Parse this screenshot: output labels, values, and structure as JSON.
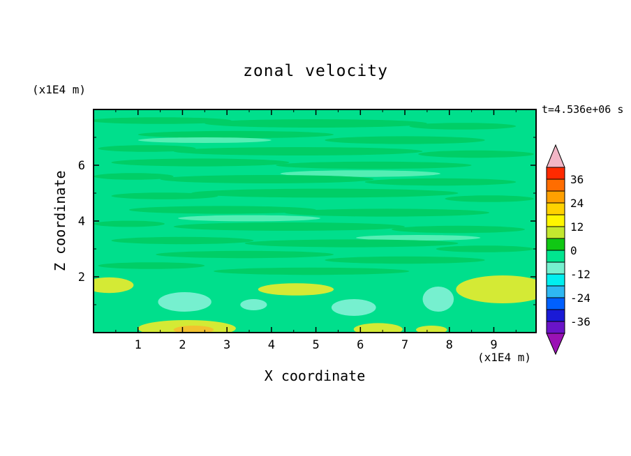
{
  "title": "zonal velocity",
  "time_label": "t=4.536e+06 s",
  "axes": {
    "x_label": "X coordinate",
    "x_unit": "(x1E4 m)",
    "y_label": "Z coordinate",
    "y_unit": "(x1E4 m)",
    "x_ticks": [
      1,
      2,
      3,
      4,
      5,
      6,
      7,
      8,
      9
    ],
    "x_minor_ticks": [
      0.5,
      1.5,
      2.5,
      3.5,
      4.5,
      5.5,
      6.5,
      7.5,
      8.5,
      9.5
    ],
    "y_ticks": [
      2,
      4,
      6
    ],
    "y_minor_ticks": [
      1,
      3,
      5,
      7
    ]
  },
  "chart_data": {
    "type": "heatmap",
    "subtype": "filled-contour",
    "title": "zonal velocity",
    "xlabel": "X coordinate (x1E4 m)",
    "ylabel": "Z coordinate (x1E4 m)",
    "time_annotation": "t=4.536e+06 s",
    "x_range": [
      0,
      9.95
    ],
    "z_range": [
      0,
      8
    ],
    "contour_interval": 6,
    "colorbar": {
      "levels": [
        -42,
        -36,
        -30,
        -24,
        -18,
        -12,
        -6,
        0,
        6,
        12,
        18,
        24,
        30,
        36,
        42
      ],
      "tick_labels": [
        "36",
        "24",
        "12",
        "0",
        "-12",
        "-24",
        "-36"
      ],
      "colors_top_to_bottom": [
        "#FF2A00",
        "#FF6D00",
        "#FFA000",
        "#FFD200",
        "#FFF600",
        "#C3E72F",
        "#10C814",
        "#00E58F",
        "#76F0CF",
        "#00EFEF",
        "#2EB8F2",
        "#0060FF",
        "#1A1AD6",
        "#6A14C8"
      ],
      "over_color": "#F2B6C6",
      "under_color": "#9A12B4"
    },
    "field": {
      "description": "Zonal velocity field, mostly near 0 m/s (green). Thin horizontal streaks of weakly positive velocity through the interior; patches of positive velocity (yellow-green, ~+6 to +18) near the lower boundary at left edge, center and lower-right; patches of negative velocity (pale cyan, ~-6 to -12) near z~1.",
      "palette": {
        "base": "#00DF8C",
        "g2": "#00CE66",
        "g3": "#55EEB4",
        "c": "#76F0CF",
        "y": "#D4EA35",
        "o": "#F2C22E"
      },
      "blobs": [
        [
          1.5,
          7.6,
          1.6,
          0.12,
          "g2"
        ],
        [
          5.0,
          7.5,
          2.5,
          0.15,
          "g2"
        ],
        [
          8.3,
          7.4,
          1.2,
          0.12,
          "g2"
        ],
        [
          3.2,
          7.1,
          2.2,
          0.13,
          "g2"
        ],
        [
          2.5,
          6.9,
          1.5,
          0.1,
          "g3"
        ],
        [
          7.0,
          6.9,
          1.8,
          0.14,
          "g2"
        ],
        [
          1.2,
          6.6,
          1.1,
          0.12,
          "g2"
        ],
        [
          4.6,
          6.5,
          2.8,
          0.15,
          "g2"
        ],
        [
          8.6,
          6.4,
          1.3,
          0.13,
          "g2"
        ],
        [
          2.4,
          6.1,
          2.0,
          0.14,
          "g2"
        ],
        [
          6.3,
          6.0,
          2.2,
          0.13,
          "g2"
        ],
        [
          6.0,
          5.7,
          1.8,
          0.12,
          "g3"
        ],
        [
          0.9,
          5.6,
          0.9,
          0.12,
          "g2"
        ],
        [
          3.9,
          5.5,
          2.4,
          0.15,
          "g2"
        ],
        [
          7.8,
          5.4,
          1.7,
          0.13,
          "g2"
        ],
        [
          5.2,
          5.0,
          3.0,
          0.16,
          "g2"
        ],
        [
          1.6,
          4.9,
          1.2,
          0.12,
          "g2"
        ],
        [
          8.9,
          4.8,
          1.0,
          0.12,
          "g2"
        ],
        [
          2.9,
          4.4,
          2.1,
          0.14,
          "g2"
        ],
        [
          6.6,
          4.3,
          2.3,
          0.14,
          "g2"
        ],
        [
          3.5,
          4.1,
          1.6,
          0.11,
          "g3"
        ],
        [
          0.8,
          3.9,
          0.8,
          0.11,
          "g2"
        ],
        [
          4.4,
          3.8,
          2.6,
          0.15,
          "g2"
        ],
        [
          8.2,
          3.7,
          1.5,
          0.13,
          "g2"
        ],
        [
          7.3,
          3.4,
          1.4,
          0.1,
          "g3"
        ],
        [
          2.0,
          3.3,
          1.6,
          0.13,
          "g2"
        ],
        [
          5.8,
          3.2,
          2.4,
          0.14,
          "g2"
        ],
        [
          8.8,
          3.0,
          1.1,
          0.12,
          "g2"
        ],
        [
          3.4,
          2.8,
          2.0,
          0.13,
          "g2"
        ],
        [
          7.0,
          2.6,
          1.8,
          0.13,
          "g2"
        ],
        [
          1.3,
          2.4,
          1.2,
          0.12,
          "g2"
        ],
        [
          4.9,
          2.2,
          2.2,
          0.13,
          "g2"
        ],
        [
          0.35,
          1.7,
          0.55,
          0.28,
          "y"
        ],
        [
          4.55,
          1.55,
          0.85,
          0.22,
          "y"
        ],
        [
          9.2,
          1.55,
          1.05,
          0.5,
          "y"
        ],
        [
          2.05,
          1.1,
          0.6,
          0.35,
          "c"
        ],
        [
          5.85,
          0.9,
          0.5,
          0.3,
          "c"
        ],
        [
          7.75,
          1.2,
          0.35,
          0.45,
          "c"
        ],
        [
          3.6,
          1.0,
          0.3,
          0.2,
          "c"
        ],
        [
          2.1,
          0.15,
          1.1,
          0.3,
          "y"
        ],
        [
          2.25,
          0.1,
          0.45,
          0.15,
          "o"
        ],
        [
          6.4,
          0.12,
          0.55,
          0.22,
          "y"
        ],
        [
          7.6,
          0.1,
          0.35,
          0.15,
          "y"
        ]
      ]
    }
  }
}
